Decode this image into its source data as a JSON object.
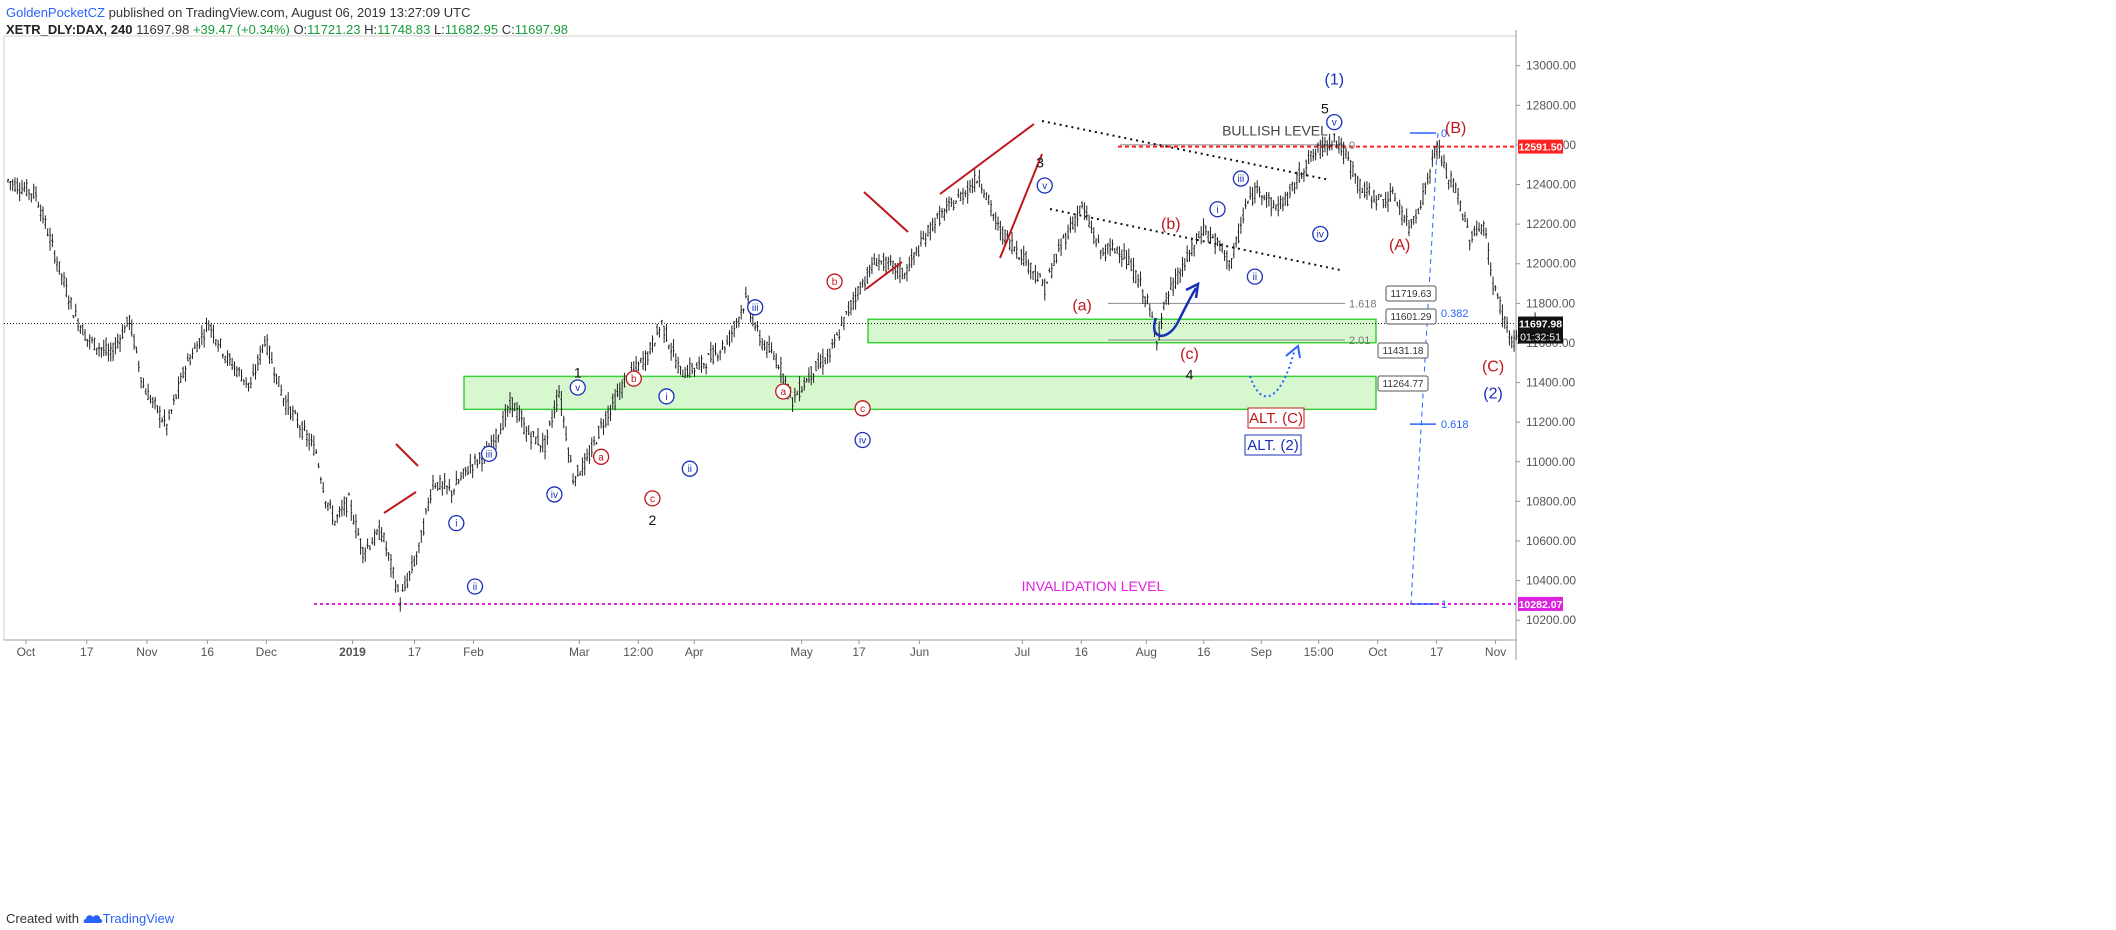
{
  "header": {
    "author": "GoldenPocketCZ",
    "publish_text": "published on TradingView.com, August 06, 2019 13:27:09 UTC",
    "symbol": "XETR_DLY:DAX, 240",
    "last": "11697.98",
    "change": "+39.47 (+0.34%)",
    "o_label": "O:",
    "o": "11721.23",
    "h_label": "H:",
    "h": "11748.83",
    "l_label": "L:",
    "l": "11682.95",
    "c_label": "C:",
    "c": "11697.98"
  },
  "footer": {
    "created_with": "Created with",
    "brand": "TradingView"
  },
  "colors": {
    "blue_wave": "#1a2fb8",
    "red_wave": "#c0171b",
    "zone_fill": "#d7f7cf",
    "zone_border": "#3ad13a",
    "bullish_level": "#ff2222",
    "invalidation": "#e020e0",
    "candle": "#222222"
  },
  "chart_data": {
    "type": "candlestick",
    "symbol": "XETR_DLY:DAX",
    "interval": "240",
    "ylim": [
      10100,
      13150
    ],
    "y_ticks": [
      10200,
      10400,
      10600,
      10800,
      11000,
      11200,
      11400,
      11600,
      11800,
      12000,
      12200,
      12400,
      12600,
      12800,
      13000
    ],
    "x_ticks": [
      "Oct",
      "17",
      "Nov",
      "16",
      "Dec",
      "2019",
      "17",
      "Feb",
      "Mar",
      "12:00",
      "Apr",
      "May",
      "17",
      "Jun",
      "Jul",
      "16",
      "Aug",
      "16",
      "Sep",
      "15:00",
      "Oct",
      "17",
      "Nov"
    ],
    "price_path": [
      [
        0,
        12420
      ],
      [
        6,
        12350
      ],
      [
        10,
        12050
      ],
      [
        14,
        11760
      ],
      [
        17,
        11620
      ],
      [
        22,
        11540
      ],
      [
        26,
        11720
      ],
      [
        29,
        11380
      ],
      [
        34,
        11180
      ],
      [
        38,
        11480
      ],
      [
        43,
        11700
      ],
      [
        47,
        11520
      ],
      [
        52,
        11380
      ],
      [
        55,
        11620
      ],
      [
        59,
        11320
      ],
      [
        63,
        11160
      ],
      [
        66,
        11050
      ],
      [
        68,
        10820
      ],
      [
        70,
        10700
      ],
      [
        73,
        10800
      ],
      [
        76,
        10550
      ],
      [
        80,
        10650
      ],
      [
        84,
        10300
      ],
      [
        88,
        10560
      ],
      [
        91,
        10900
      ],
      [
        95,
        10850
      ],
      [
        99,
        10980
      ],
      [
        103,
        11050
      ],
      [
        108,
        11300
      ],
      [
        111,
        11150
      ],
      [
        115,
        11080
      ],
      [
        118,
        11360
      ],
      [
        121,
        10920
      ],
      [
        124,
        11000
      ],
      [
        127,
        11180
      ],
      [
        132,
        11400
      ],
      [
        137,
        11540
      ],
      [
        140,
        11700
      ],
      [
        144,
        11450
      ],
      [
        148,
        11480
      ],
      [
        154,
        11600
      ],
      [
        158,
        11820
      ],
      [
        161,
        11620
      ],
      [
        165,
        11500
      ],
      [
        168,
        11310
      ],
      [
        172,
        11450
      ],
      [
        176,
        11540
      ],
      [
        181,
        11820
      ],
      [
        186,
        12020
      ],
      [
        192,
        11950
      ],
      [
        198,
        12200
      ],
      [
        204,
        12340
      ],
      [
        208,
        12440
      ],
      [
        212,
        12180
      ],
      [
        218,
        12020
      ],
      [
        222,
        11880
      ],
      [
        226,
        12120
      ],
      [
        230,
        12290
      ],
      [
        234,
        12060
      ],
      [
        238,
        12080
      ],
      [
        242,
        11920
      ],
      [
        244,
        11800
      ],
      [
        246,
        11630
      ],
      [
        248,
        11820
      ],
      [
        252,
        12000
      ],
      [
        256,
        12180
      ],
      [
        259,
        12100
      ],
      [
        262,
        12000
      ],
      [
        265,
        12290
      ],
      [
        268,
        12390
      ],
      [
        271,
        12280
      ],
      [
        274,
        12330
      ],
      [
        278,
        12510
      ],
      [
        281,
        12580
      ],
      [
        284,
        12640
      ],
      [
        287,
        12520
      ],
      [
        290,
        12370
      ],
      [
        294,
        12320
      ],
      [
        297,
        12340
      ],
      [
        300,
        12180
      ],
      [
        303,
        12340
      ],
      [
        306,
        12600
      ],
      [
        308,
        12450
      ],
      [
        310,
        12380
      ],
      [
        313,
        12130
      ],
      [
        316,
        12200
      ],
      [
        318,
        11900
      ],
      [
        320,
        11750
      ],
      [
        322,
        11610
      ],
      [
        325,
        11650
      ],
      [
        327,
        11697.98
      ]
    ],
    "levels": [
      {
        "name": "bullish-level",
        "value": 12591.5,
        "label": "BULLISH LEVEL",
        "style": "dashed",
        "color": "#ff2222"
      },
      {
        "name": "invalidation-level",
        "value": 10282.07,
        "label": "INVALIDATION LEVEL",
        "style": "dashed",
        "color": "#e020e0"
      },
      {
        "name": "last-price",
        "value": 11697.98,
        "style": "dotted",
        "color": "#222222"
      }
    ],
    "zones": [
      {
        "name": "upper-target-zone",
        "from": 11601.29,
        "to": 11719.63
      },
      {
        "name": "lower-target-zone",
        "from": 11264.77,
        "to": 11431.18
      }
    ],
    "fib_levels": [
      {
        "label": "1.618",
        "value": 11800
      },
      {
        "label": "2.01",
        "value": 11615
      },
      {
        "label": "0",
        "value": 12600
      }
    ],
    "fib_retracement": [
      {
        "label": "0",
        "value": 12660
      },
      {
        "label": "0.382",
        "value": 11752
      },
      {
        "label": "0.618",
        "value": 11190
      },
      {
        "label": "1",
        "value": 10282
      }
    ],
    "price_boxes": [
      "11719.63",
      "11601.29",
      "11431.18",
      "11264.77"
    ],
    "price_axis_badges": [
      {
        "value": 12591.5,
        "text": "12591.50",
        "color": "#ff2222"
      },
      {
        "value": 11697.98,
        "text": "11697.98",
        "color": "#111111"
      },
      {
        "value": 10282.07,
        "text": "10282.07",
        "color": "#e020e0"
      }
    ],
    "countdown": "01:32:51",
    "wave_labels": [
      {
        "text": "(1)",
        "t": 284,
        "price": 12930,
        "color": "blue",
        "style": "plain"
      },
      {
        "text": "5",
        "t": 282,
        "price": 12785,
        "color": "black",
        "style": "plain"
      },
      {
        "text": "v",
        "t": 284,
        "price": 12715,
        "color": "blue",
        "style": "circle"
      },
      {
        "text": "(B)",
        "t": 310,
        "price": 12685,
        "color": "red",
        "style": "plain"
      },
      {
        "text": "3",
        "t": 221,
        "price": 12510,
        "color": "black",
        "style": "plain"
      },
      {
        "text": "v",
        "t": 222,
        "price": 12395,
        "color": "blue",
        "style": "circle"
      },
      {
        "text": "iii",
        "t": 264,
        "price": 12430,
        "color": "blue",
        "style": "circle"
      },
      {
        "text": "i",
        "t": 259,
        "price": 12275,
        "color": "blue",
        "style": "circle"
      },
      {
        "text": "(b)",
        "t": 249,
        "price": 12200,
        "color": "red",
        "style": "plain"
      },
      {
        "text": "iv",
        "t": 281,
        "price": 12150,
        "color": "blue",
        "style": "circle"
      },
      {
        "text": "(A)",
        "t": 298,
        "price": 12095,
        "color": "red",
        "style": "plain"
      },
      {
        "text": "ii",
        "t": 267,
        "price": 11935,
        "color": "blue",
        "style": "circle"
      },
      {
        "text": "(a)",
        "t": 230,
        "price": 11790,
        "color": "red",
        "style": "plain"
      },
      {
        "text": "b",
        "t": 177,
        "price": 11910,
        "color": "red",
        "style": "circle"
      },
      {
        "text": "iii",
        "t": 160,
        "price": 11780,
        "color": "blue",
        "style": "circle"
      },
      {
        "text": "(c)",
        "t": 253,
        "price": 11545,
        "color": "red",
        "style": "plain"
      },
      {
        "text": "(C)",
        "t": 318,
        "price": 11480,
        "color": "red",
        "style": "plain"
      },
      {
        "text": "4",
        "t": 253,
        "price": 11440,
        "color": "black",
        "style": "plain"
      },
      {
        "text": "(2)",
        "t": 318,
        "price": 11345,
        "color": "blue",
        "style": "plain"
      },
      {
        "text": "1",
        "t": 122,
        "price": 11450,
        "color": "black",
        "style": "plain"
      },
      {
        "text": "v",
        "t": 122,
        "price": 11375,
        "color": "blue",
        "style": "circle"
      },
      {
        "text": "b",
        "t": 134,
        "price": 11420,
        "color": "red",
        "style": "circle"
      },
      {
        "text": "a",
        "t": 166,
        "price": 11355,
        "color": "red",
        "style": "circle"
      },
      {
        "text": "i",
        "t": 141,
        "price": 11330,
        "color": "blue",
        "style": "circle"
      },
      {
        "text": "c",
        "t": 183,
        "price": 11270,
        "color": "red",
        "style": "circle"
      },
      {
        "text": "iv",
        "t": 183,
        "price": 11110,
        "color": "blue",
        "style": "circle"
      },
      {
        "text": "iii",
        "t": 103,
        "price": 11040,
        "color": "blue",
        "style": "circle"
      },
      {
        "text": "a",
        "t": 127,
        "price": 11025,
        "color": "red",
        "style": "circle"
      },
      {
        "text": "ii",
        "t": 146,
        "price": 10965,
        "color": "blue",
        "style": "circle"
      },
      {
        "text": "iv",
        "t": 117,
        "price": 10835,
        "color": "blue",
        "style": "circle"
      },
      {
        "text": "c",
        "t": 138,
        "price": 10815,
        "color": "red",
        "style": "circle"
      },
      {
        "text": "2",
        "t": 138,
        "price": 10705,
        "color": "black",
        "style": "plain"
      },
      {
        "text": "i",
        "t": 96,
        "price": 10690,
        "color": "blue",
        "style": "circle"
      },
      {
        "text": "ii",
        "t": 100,
        "price": 10370,
        "color": "blue",
        "style": "circle"
      }
    ],
    "annotations": [
      {
        "text": "ALT. (C)",
        "color": "red"
      },
      {
        "text": "ALT. (2)",
        "color": "blue"
      }
    ]
  }
}
